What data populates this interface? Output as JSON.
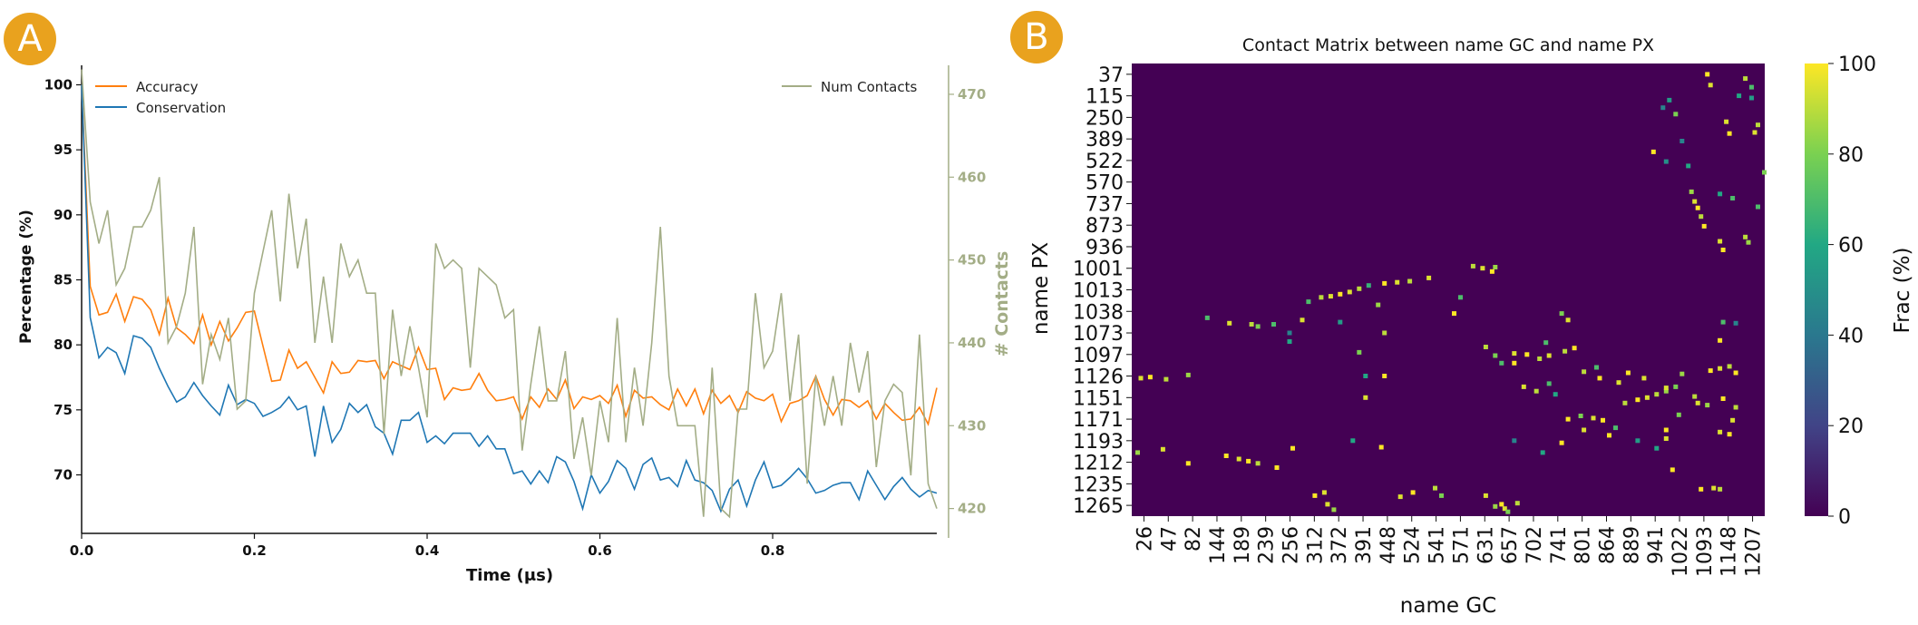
{
  "panels": {
    "a_label": "A",
    "b_label": "B"
  },
  "colors": {
    "badge": "#e9a21e",
    "accuracy": "#ff7f0e",
    "conservation": "#1f77b4",
    "contacts": "#a3ad86"
  },
  "chart_data": [
    {
      "type": "line",
      "panel": "A",
      "title": "",
      "xlabel": "Time (μs)",
      "ylabel": "Percentage (%)",
      "y2label": "# Contacts",
      "xlim": [
        0,
        0.99
      ],
      "ylim": [
        65.5,
        101.5
      ],
      "y2lim": [
        417,
        473.5
      ],
      "xticks": [
        "0.0",
        "0.2",
        "0.4",
        "0.6",
        "0.8"
      ],
      "yticks": [
        "70",
        "75",
        "80",
        "85",
        "90",
        "95",
        "100"
      ],
      "y2ticks": [
        "420",
        "430",
        "440",
        "450",
        "460",
        "470"
      ],
      "legend_left": [
        "Accuracy",
        "Conservation"
      ],
      "legend_right": [
        "Num Contacts"
      ],
      "x": [
        0.0,
        0.01,
        0.02,
        0.03,
        0.04,
        0.05,
        0.06,
        0.07,
        0.08,
        0.09,
        0.1,
        0.11,
        0.12,
        0.13,
        0.14,
        0.15,
        0.16,
        0.17,
        0.18,
        0.19,
        0.2,
        0.21,
        0.22,
        0.23,
        0.24,
        0.25,
        0.26,
        0.27,
        0.28,
        0.29,
        0.3,
        0.31,
        0.32,
        0.33,
        0.34,
        0.35,
        0.36,
        0.37,
        0.38,
        0.39,
        0.4,
        0.41,
        0.42,
        0.43,
        0.44,
        0.45,
        0.46,
        0.47,
        0.48,
        0.49,
        0.5,
        0.51,
        0.52,
        0.53,
        0.54,
        0.55,
        0.56,
        0.57,
        0.58,
        0.59,
        0.6,
        0.61,
        0.62,
        0.63,
        0.64,
        0.65,
        0.66,
        0.67,
        0.68,
        0.69,
        0.7,
        0.71,
        0.72,
        0.73,
        0.74,
        0.75,
        0.76,
        0.77,
        0.78,
        0.79,
        0.8,
        0.81,
        0.82,
        0.83,
        0.84,
        0.85,
        0.86,
        0.87,
        0.88,
        0.89,
        0.9,
        0.91,
        0.92,
        0.93,
        0.94,
        0.95,
        0.96,
        0.97,
        0.98,
        0.99
      ],
      "series": [
        {
          "name": "Accuracy",
          "axis": "left",
          "values": [
            100.0,
            84.5,
            82.3,
            82.5,
            83.9,
            81.8,
            83.7,
            83.5,
            82.7,
            80.8,
            83.6,
            81.3,
            80.8,
            80.1,
            82.3,
            80.0,
            81.8,
            80.3,
            81.3,
            82.5,
            82.6,
            79.9,
            77.2,
            77.3,
            79.6,
            78.2,
            78.7,
            77.5,
            76.3,
            78.7,
            77.8,
            77.9,
            78.8,
            78.7,
            78.8,
            77.4,
            78.7,
            78.4,
            78.1,
            79.8,
            78.1,
            78.2,
            75.8,
            76.7,
            76.5,
            76.6,
            77.8,
            76.5,
            75.7,
            75.8,
            76.0,
            74.3,
            76.0,
            75.2,
            76.6,
            75.8,
            77.3,
            75.1,
            76.0,
            75.8,
            76.1,
            75.5,
            76.9,
            74.5,
            76.5,
            75.9,
            76.0,
            75.4,
            75.0,
            76.6,
            75.3,
            76.6,
            74.7,
            76.5,
            75.5,
            76.1,
            74.8,
            76.4,
            75.9,
            75.7,
            76.2,
            74.1,
            75.5,
            75.7,
            76.1,
            77.6,
            75.8,
            74.6,
            75.8,
            75.7,
            75.2,
            75.7,
            74.3,
            75.5,
            74.8,
            74.2,
            74.3,
            75.2,
            73.9,
            76.7
          ]
        },
        {
          "name": "Conservation",
          "axis": "left",
          "values": [
            100.0,
            82.1,
            79.0,
            79.8,
            79.4,
            77.8,
            80.7,
            80.5,
            79.8,
            78.2,
            76.8,
            75.6,
            76.0,
            77.1,
            76.1,
            75.3,
            74.6,
            76.9,
            75.4,
            75.8,
            75.5,
            74.5,
            74.8,
            75.2,
            76.0,
            75.0,
            75.3,
            71.4,
            75.3,
            72.5,
            73.5,
            75.5,
            74.8,
            75.4,
            73.7,
            73.2,
            71.6,
            74.2,
            74.2,
            74.8,
            72.5,
            73.0,
            72.4,
            73.2,
            73.2,
            73.2,
            72.2,
            73.0,
            72.0,
            72.0,
            70.1,
            70.3,
            69.3,
            70.3,
            69.4,
            71.4,
            71.0,
            69.5,
            67.4,
            70.0,
            68.6,
            69.5,
            71.1,
            70.5,
            68.9,
            70.8,
            71.3,
            69.6,
            69.8,
            69.1,
            71.1,
            69.6,
            69.4,
            68.8,
            67.2,
            68.9,
            69.6,
            67.6,
            69.6,
            71.0,
            69.0,
            69.2,
            69.8,
            70.5,
            69.7,
            68.6,
            68.8,
            69.2,
            69.4,
            69.4,
            68.1,
            70.3,
            69.2,
            68.1,
            69.1,
            69.8,
            68.9,
            68.3,
            68.8,
            68.6
          ]
        },
        {
          "name": "Num Contacts",
          "axis": "right",
          "values": [
            473.0,
            457.0,
            452.0,
            456.0,
            447.0,
            449.0,
            454.0,
            454.0,
            456.0,
            460.0,
            440.0,
            442.0,
            446.0,
            454.0,
            435.0,
            441.0,
            438.0,
            443.0,
            432.0,
            433.0,
            446.0,
            451.0,
            456.0,
            445.0,
            458.0,
            449.0,
            455.0,
            440.0,
            448.0,
            440.0,
            452.0,
            448.0,
            450.0,
            446.0,
            446.0,
            429.0,
            444.0,
            436.0,
            442.0,
            437.0,
            431.0,
            452.0,
            449.0,
            450.0,
            449.0,
            437.0,
            449.0,
            448.0,
            447.0,
            443.0,
            444.0,
            427.0,
            435.0,
            442.0,
            433.0,
            433.0,
            439.0,
            426.0,
            431.0,
            424.0,
            433.0,
            428.0,
            443.0,
            428.0,
            437.0,
            430.0,
            440.0,
            454.0,
            436.0,
            430.0,
            430.0,
            430.0,
            419.0,
            437.0,
            420.0,
            419.0,
            432.0,
            432.0,
            446.0,
            437.0,
            439.0,
            446.0,
            433.0,
            441.0,
            423.0,
            436.0,
            430.0,
            436.0,
            430.0,
            440.0,
            434.0,
            439.0,
            425.0,
            433.0,
            435.0,
            434.0,
            424.0,
            441.0,
            423.0,
            420.0
          ]
        }
      ]
    },
    {
      "type": "heatmap",
      "panel": "B",
      "title": "Contact Matrix between name GC and name PX",
      "xlabel": "name GC",
      "ylabel": "name PX",
      "colorbar_label": "Frac (%)",
      "colorbar_ticks": [
        "0",
        "20",
        "40",
        "60",
        "80",
        "100"
      ],
      "vmin": 0,
      "vmax": 100,
      "colormap": "viridis",
      "background_value": 0,
      "xticks": [
        "26",
        "47",
        "82",
        "144",
        "189",
        "239",
        "256",
        "312",
        "372",
        "391",
        "448",
        "524",
        "541",
        "571",
        "631",
        "657",
        "702",
        "741",
        "801",
        "864",
        "889",
        "941",
        "1022",
        "1093",
        "1148",
        "1207"
      ],
      "yticks": [
        "37",
        "115",
        "250",
        "389",
        "522",
        "570",
        "737",
        "873",
        "936",
        "1001",
        "1013",
        "1038",
        "1073",
        "1097",
        "1126",
        "1151",
        "1171",
        "1193",
        "1212",
        "1235",
        "1265"
      ],
      "cells": [
        [
          0.03,
          14.05,
          100
        ],
        [
          0.015,
          14.1,
          95
        ],
        [
          0.055,
          14.15,
          90
        ],
        [
          0.09,
          13.95,
          85
        ],
        [
          0.01,
          17.55,
          85
        ],
        [
          0.05,
          17.4,
          95
        ],
        [
          0.09,
          18.05,
          100
        ],
        [
          0.12,
          11.3,
          70
        ],
        [
          0.155,
          11.55,
          95
        ],
        [
          0.19,
          11.6,
          90
        ],
        [
          0.15,
          17.7,
          100
        ],
        [
          0.17,
          17.85,
          95
        ],
        [
          0.185,
          17.95,
          100
        ],
        [
          0.2,
          18.05,
          90
        ],
        [
          0.2,
          11.7,
          80
        ],
        [
          0.225,
          11.6,
          70
        ],
        [
          0.25,
          12.4,
          60
        ],
        [
          0.255,
          17.35,
          100
        ],
        [
          0.27,
          11.4,
          95
        ],
        [
          0.23,
          18.25,
          100
        ],
        [
          0.28,
          10.55,
          70
        ],
        [
          0.3,
          10.35,
          90
        ],
        [
          0.315,
          10.3,
          95
        ],
        [
          0.33,
          10.2,
          100
        ],
        [
          0.345,
          10.1,
          95
        ],
        [
          0.36,
          9.95,
          90
        ],
        [
          0.375,
          9.8,
          65
        ],
        [
          0.25,
          12.0,
          45
        ],
        [
          0.37,
          14.0,
          60
        ],
        [
          0.36,
          12.9,
          80
        ],
        [
          0.33,
          11.5,
          55
        ],
        [
          0.29,
          19.55,
          100
        ],
        [
          0.305,
          19.4,
          95
        ],
        [
          0.31,
          19.95,
          95
        ],
        [
          0.32,
          20.2,
          85
        ],
        [
          0.35,
          17.0,
          60
        ],
        [
          0.37,
          15.0,
          95
        ],
        [
          0.39,
          10.7,
          85
        ],
        [
          0.4,
          9.7,
          100
        ],
        [
          0.42,
          9.65,
          95
        ],
        [
          0.44,
          9.6,
          90
        ],
        [
          0.47,
          9.45,
          95
        ],
        [
          0.4,
          12.0,
          90
        ],
        [
          0.4,
          14.0,
          100
        ],
        [
          0.425,
          19.6,
          95
        ],
        [
          0.445,
          19.4,
          100
        ],
        [
          0.48,
          19.2,
          90
        ],
        [
          0.395,
          17.3,
          100
        ],
        [
          0.49,
          19.55,
          80
        ],
        [
          0.51,
          11.1,
          100
        ],
        [
          0.52,
          10.35,
          70
        ],
        [
          0.54,
          8.9,
          90
        ],
        [
          0.555,
          9.0,
          95
        ],
        [
          0.57,
          9.15,
          100
        ],
        [
          0.575,
          8.95,
          85
        ],
        [
          0.56,
          12.65,
          90
        ],
        [
          0.575,
          13.05,
          80
        ],
        [
          0.585,
          13.4,
          70
        ],
        [
          0.605,
          12.95,
          95
        ],
        [
          0.625,
          13.0,
          100
        ],
        [
          0.645,
          13.2,
          90
        ],
        [
          0.66,
          13.05,
          95
        ],
        [
          0.685,
          12.85,
          90
        ],
        [
          0.7,
          12.7,
          100
        ],
        [
          0.605,
          13.4,
          100
        ],
        [
          0.655,
          12.45,
          70
        ],
        [
          0.69,
          16.0,
          100
        ],
        [
          0.71,
          15.85,
          80
        ],
        [
          0.73,
          15.95,
          95
        ],
        [
          0.745,
          16.05,
          100
        ],
        [
          0.715,
          16.5,
          95
        ],
        [
          0.755,
          16.75,
          100
        ],
        [
          0.78,
          15.25,
          90
        ],
        [
          0.8,
          15.1,
          100
        ],
        [
          0.815,
          15.0,
          95
        ],
        [
          0.83,
          14.85,
          90
        ],
        [
          0.845,
          14.7,
          85
        ],
        [
          0.86,
          14.5,
          80
        ],
        [
          0.845,
          16.9,
          95
        ],
        [
          0.68,
          17.1,
          100
        ],
        [
          0.605,
          17.0,
          45
        ],
        [
          0.65,
          17.55,
          60
        ],
        [
          0.785,
          13.85,
          100
        ],
        [
          0.81,
          14.1,
          95
        ],
        [
          0.845,
          14.55,
          95
        ],
        [
          0.87,
          13.9,
          85
        ],
        [
          0.915,
          13.75,
          100
        ],
        [
          0.93,
          13.65,
          95
        ],
        [
          0.945,
          13.55,
          90
        ],
        [
          0.955,
          13.85,
          100
        ],
        [
          0.89,
          14.95,
          90
        ],
        [
          0.895,
          15.25,
          95
        ],
        [
          0.91,
          15.35,
          85
        ],
        [
          0.935,
          15.05,
          100
        ],
        [
          0.955,
          15.45,
          90
        ],
        [
          0.95,
          16.05,
          95
        ],
        [
          0.935,
          11.5,
          70
        ],
        [
          0.93,
          12.35,
          100
        ],
        [
          0.955,
          11.55,
          45
        ],
        [
          0.9,
          19.25,
          100
        ],
        [
          0.92,
          19.2,
          95
        ],
        [
          0.93,
          19.25,
          90
        ],
        [
          0.845,
          16.5,
          100
        ],
        [
          0.865,
          15.8,
          80
        ],
        [
          0.93,
          16.6,
          95
        ],
        [
          0.945,
          16.7,
          100
        ],
        [
          0.83,
          17.35,
          60
        ],
        [
          0.8,
          17.0,
          55
        ],
        [
          0.56,
          19.55,
          95
        ],
        [
          0.585,
          19.95,
          100
        ],
        [
          0.575,
          20.05,
          85
        ],
        [
          0.59,
          20.15,
          95
        ],
        [
          0.61,
          19.9,
          90
        ],
        [
          0.595,
          20.3,
          80
        ],
        [
          0.855,
          18.35,
          100
        ],
        [
          0.765,
          16.4,
          70
        ],
        [
          0.62,
          14.5,
          95
        ],
        [
          0.64,
          14.7,
          90
        ],
        [
          0.66,
          14.35,
          70
        ],
        [
          0.67,
          14.85,
          60
        ],
        [
          0.715,
          13.8,
          90
        ],
        [
          0.74,
          14.1,
          100
        ],
        [
          0.77,
          14.3,
          95
        ],
        [
          0.735,
          13.6,
          70
        ],
        [
          0.68,
          11.1,
          80
        ],
        [
          0.69,
          11.4,
          95
        ],
        [
          0.91,
          0.0,
          100
        ],
        [
          0.915,
          0.5,
          95
        ],
        [
          0.97,
          0.2,
          90
        ],
        [
          0.98,
          0.6,
          70
        ],
        [
          0.96,
          1.0,
          60
        ],
        [
          0.85,
          1.2,
          55
        ],
        [
          0.84,
          1.55,
          45
        ],
        [
          0.86,
          1.85,
          80
        ],
        [
          0.94,
          2.2,
          95
        ],
        [
          0.945,
          2.75,
          100
        ],
        [
          0.99,
          2.35,
          90
        ],
        [
          0.985,
          2.7,
          95
        ],
        [
          0.825,
          3.6,
          100
        ],
        [
          0.845,
          4.05,
          50
        ],
        [
          0.88,
          4.25,
          60
        ],
        [
          0.885,
          5.45,
          85
        ],
        [
          0.89,
          5.9,
          95
        ],
        [
          0.895,
          6.2,
          100
        ],
        [
          0.9,
          6.6,
          90
        ],
        [
          0.905,
          7.05,
          100
        ],
        [
          0.93,
          5.55,
          60
        ],
        [
          0.95,
          5.75,
          70
        ],
        [
          1.0,
          4.55,
          80
        ],
        [
          0.98,
          1.1,
          55
        ],
        [
          0.87,
          3.1,
          45
        ],
        [
          0.93,
          7.75,
          95
        ],
        [
          0.935,
          8.15,
          100
        ],
        [
          0.97,
          7.55,
          90
        ],
        [
          0.975,
          7.8,
          85
        ],
        [
          0.99,
          6.15,
          70
        ]
      ]
    }
  ]
}
